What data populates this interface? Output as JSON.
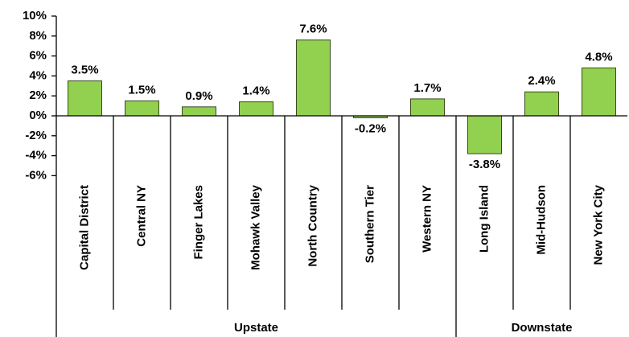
{
  "chart_data": {
    "type": "bar",
    "groups": [
      {
        "name": "Upstate",
        "categories": [
          "Capital District",
          "Central NY",
          "Finger Lakes",
          "Mohawk Valley",
          "North Country",
          "Southern Tier",
          "Western NY"
        ]
      },
      {
        "name": "Downstate",
        "categories": [
          "Long Island",
          "Mid-Hudson",
          "New York City"
        ]
      }
    ],
    "values": [
      3.5,
      1.5,
      0.9,
      1.4,
      7.6,
      -0.2,
      1.7,
      -3.8,
      2.4,
      4.8
    ],
    "value_labels": [
      "3.5%",
      "1.5%",
      "0.9%",
      "1.4%",
      "7.6%",
      "-0.2%",
      "1.7%",
      "-3.8%",
      "2.4%",
      "4.8%"
    ],
    "color": "#92d050",
    "ylim": [
      -6,
      10
    ],
    "yticks": [
      {
        "value": -6,
        "label": "-6%"
      },
      {
        "value": -4,
        "label": "-4%"
      },
      {
        "value": -2,
        "label": "-2%"
      },
      {
        "value": 0,
        "label": "0%"
      },
      {
        "value": 2,
        "label": "2%"
      },
      {
        "value": 4,
        "label": "4%"
      },
      {
        "value": 6,
        "label": "6%"
      },
      {
        "value": 8,
        "label": "8%"
      },
      {
        "value": 10,
        "label": "10%"
      }
    ],
    "grid": false
  }
}
